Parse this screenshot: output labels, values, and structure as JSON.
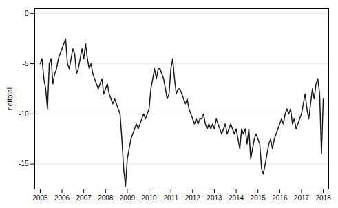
{
  "chart_data": {
    "type": "line",
    "ylabel": "nettotal",
    "x": [
      2005.0,
      2005.083,
      2005.167,
      2005.25,
      2005.333,
      2005.417,
      2005.5,
      2005.583,
      2005.667,
      2005.75,
      2005.833,
      2005.917,
      2006.0,
      2006.083,
      2006.167,
      2006.25,
      2006.333,
      2006.417,
      2006.5,
      2006.583,
      2006.667,
      2006.75,
      2006.833,
      2006.917,
      2007.0,
      2007.083,
      2007.167,
      2007.25,
      2007.333,
      2007.417,
      2007.5,
      2007.583,
      2007.667,
      2007.75,
      2007.833,
      2007.917,
      2008.0,
      2008.083,
      2008.167,
      2008.25,
      2008.333,
      2008.417,
      2008.5,
      2008.583,
      2008.667,
      2008.75,
      2008.833,
      2008.917,
      2009.0,
      2009.083,
      2009.167,
      2009.25,
      2009.333,
      2009.417,
      2009.5,
      2009.583,
      2009.667,
      2009.75,
      2009.833,
      2009.917,
      2010.0,
      2010.083,
      2010.167,
      2010.25,
      2010.333,
      2010.417,
      2010.5,
      2010.583,
      2010.667,
      2010.75,
      2010.833,
      2010.917,
      2011.0,
      2011.083,
      2011.167,
      2011.25,
      2011.333,
      2011.417,
      2011.5,
      2011.583,
      2011.667,
      2011.75,
      2011.833,
      2011.917,
      2012.0,
      2012.083,
      2012.167,
      2012.25,
      2012.333,
      2012.417,
      2012.5,
      2012.583,
      2012.667,
      2012.75,
      2012.833,
      2012.917,
      2013.0,
      2013.083,
      2013.167,
      2013.25,
      2013.333,
      2013.417,
      2013.5,
      2013.583,
      2013.667,
      2013.75,
      2013.833,
      2013.917,
      2014.0,
      2014.083,
      2014.167,
      2014.25,
      2014.333,
      2014.417,
      2014.5,
      2014.583,
      2014.667,
      2014.75,
      2014.833,
      2014.917,
      2015.0,
      2015.083,
      2015.167,
      2015.25,
      2015.333,
      2015.417,
      2015.5,
      2015.583,
      2015.667,
      2015.75,
      2015.833,
      2015.917,
      2016.0,
      2016.083,
      2016.167,
      2016.25,
      2016.333,
      2016.417,
      2016.5,
      2016.583,
      2016.667,
      2016.75,
      2016.833,
      2016.917,
      2017.0,
      2017.083,
      2017.167,
      2017.25,
      2017.333,
      2017.417,
      2017.5,
      2017.583,
      2017.667,
      2017.75,
      2017.833,
      2017.917,
      2018.0
    ],
    "values": [
      -5.0,
      -4.5,
      -6.5,
      -7.5,
      -9.5,
      -5.0,
      -4.5,
      -7.0,
      -6.0,
      -5.5,
      -4.5,
      -4.0,
      -3.5,
      -3.0,
      -2.5,
      -5.0,
      -5.5,
      -4.5,
      -3.5,
      -4.0,
      -6.0,
      -5.5,
      -4.5,
      -3.5,
      -4.5,
      -3.0,
      -4.5,
      -5.5,
      -5.0,
      -6.0,
      -6.5,
      -7.0,
      -7.5,
      -7.0,
      -6.5,
      -8.0,
      -7.5,
      -7.0,
      -8.0,
      -8.5,
      -9.0,
      -8.5,
      -9.0,
      -9.5,
      -10.0,
      -12.5,
      -15.5,
      -17.2,
      -14.5,
      -13.5,
      -12.5,
      -12.0,
      -11.5,
      -11.0,
      -11.5,
      -11.0,
      -10.5,
      -10.0,
      -10.5,
      -10.0,
      -9.5,
      -7.5,
      -6.5,
      -5.5,
      -6.5,
      -5.5,
      -5.5,
      -6.0,
      -6.5,
      -7.5,
      -8.5,
      -8.0,
      -5.5,
      -4.5,
      -6.5,
      -8.0,
      -7.5,
      -7.5,
      -8.0,
      -8.5,
      -9.0,
      -8.5,
      -9.5,
      -10.0,
      -10.5,
      -11.0,
      -10.5,
      -11.0,
      -10.5,
      -10.5,
      -10.0,
      -11.0,
      -11.5,
      -11.0,
      -11.5,
      -11.0,
      -11.5,
      -10.5,
      -11.0,
      -11.5,
      -12.0,
      -11.5,
      -11.0,
      -12.0,
      -11.5,
      -11.0,
      -11.5,
      -12.0,
      -11.5,
      -12.5,
      -13.5,
      -11.5,
      -12.0,
      -11.5,
      -13.0,
      -11.5,
      -14.5,
      -13.5,
      -12.5,
      -12.0,
      -12.5,
      -13.0,
      -15.5,
      -16.0,
      -15.0,
      -14.0,
      -13.0,
      -12.5,
      -13.5,
      -12.5,
      -12.0,
      -11.5,
      -11.0,
      -10.5,
      -11.0,
      -10.0,
      -9.5,
      -10.0,
      -9.5,
      -11.0,
      -10.5,
      -11.5,
      -11.0,
      -10.5,
      -10.0,
      -9.0,
      -8.0,
      -9.5,
      -10.5,
      -9.0,
      -7.5,
      -8.5,
      -7.0,
      -6.5,
      -8.0,
      -14.0,
      -8.5
    ],
    "color": "#1a1a1a",
    "xlim": [
      2004.75,
      2018.25
    ],
    "ylim": [
      -17.5,
      0.5
    ],
    "xticks": [
      2005,
      2006,
      2007,
      2008,
      2009,
      2010,
      2011,
      2012,
      2013,
      2014,
      2015,
      2016,
      2017,
      2018
    ],
    "yticks": [
      0,
      -5,
      -10,
      -15
    ],
    "grid": true
  }
}
